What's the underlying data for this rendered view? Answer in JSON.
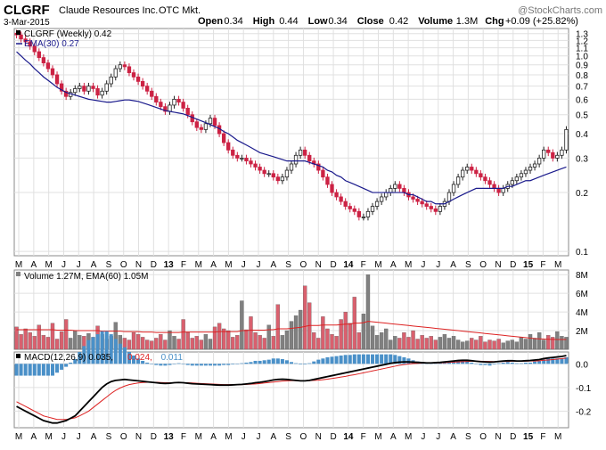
{
  "header": {
    "symbol": "CLGRF",
    "company": "Claude Resources Inc.",
    "exchange": "OTC Mkt.",
    "watermark": "@StockCharts.com",
    "date": "3-Mar-2015",
    "quote": [
      {
        "label": "Open",
        "value": "0.34"
      },
      {
        "label": "High",
        "value": "0.44"
      },
      {
        "label": "Low",
        "value": "0.34"
      },
      {
        "label": "Close",
        "value": "0.42"
      },
      {
        "label": "Volume",
        "value": "1.3M"
      },
      {
        "label": "Chg",
        "value": "+0.09 (+25.82%)"
      }
    ]
  },
  "colors": {
    "up": "#222222",
    "down": "#cc2244",
    "ema": "#1a1a8c",
    "vol_up": "#808080",
    "vol_down": "#d9606e",
    "vol_ema": "#dd2222",
    "macd": "#000000",
    "signal": "#dd2222",
    "hist": "#4a90c8",
    "grid": "#e0e0e0"
  },
  "chart_data": [
    {
      "type": "candlestick",
      "legend": [
        {
          "text": "CLGRF (Weekly) 0.42",
          "color": "#000000"
        },
        {
          "text": "EMA(30) 0.27",
          "color": "#1a1a8c"
        }
      ],
      "y_ticks": [
        "1.3",
        "1.2",
        "1.1",
        "1.0",
        "0.9",
        "0.8",
        "0.7",
        "0.6",
        "0.5",
        "0.4",
        "0.3",
        "0.2",
        "0.1"
      ],
      "ylim": [
        0.1,
        1.3
      ],
      "scale": "log",
      "close": [
        1.28,
        1.22,
        1.18,
        1.12,
        1.05,
        0.98,
        0.92,
        0.86,
        0.8,
        0.72,
        0.66,
        0.62,
        0.65,
        0.68,
        0.7,
        0.66,
        0.7,
        0.68,
        0.63,
        0.66,
        0.72,
        0.78,
        0.86,
        0.9,
        0.88,
        0.82,
        0.78,
        0.74,
        0.7,
        0.66,
        0.62,
        0.58,
        0.55,
        0.52,
        0.56,
        0.6,
        0.58,
        0.54,
        0.5,
        0.46,
        0.43,
        0.42,
        0.45,
        0.48,
        0.44,
        0.4,
        0.36,
        0.33,
        0.31,
        0.3,
        0.3,
        0.29,
        0.28,
        0.27,
        0.26,
        0.25,
        0.25,
        0.24,
        0.23,
        0.24,
        0.26,
        0.28,
        0.31,
        0.33,
        0.31,
        0.29,
        0.28,
        0.26,
        0.24,
        0.22,
        0.2,
        0.19,
        0.18,
        0.17,
        0.165,
        0.16,
        0.15,
        0.15,
        0.16,
        0.17,
        0.18,
        0.19,
        0.2,
        0.21,
        0.22,
        0.21,
        0.2,
        0.19,
        0.185,
        0.18,
        0.175,
        0.17,
        0.165,
        0.16,
        0.17,
        0.18,
        0.2,
        0.22,
        0.24,
        0.26,
        0.27,
        0.26,
        0.25,
        0.24,
        0.23,
        0.22,
        0.21,
        0.2,
        0.21,
        0.22,
        0.23,
        0.24,
        0.25,
        0.26,
        0.27,
        0.28,
        0.3,
        0.33,
        0.32,
        0.3,
        0.31,
        0.33,
        0.42
      ],
      "ema": [
        1.05,
        1.0,
        0.95,
        0.91,
        0.86,
        0.82,
        0.78,
        0.75,
        0.72,
        0.69,
        0.67,
        0.65,
        0.64,
        0.63,
        0.62,
        0.61,
        0.6,
        0.595,
        0.59,
        0.585,
        0.58,
        0.58,
        0.585,
        0.59,
        0.595,
        0.595,
        0.59,
        0.585,
        0.575,
        0.565,
        0.555,
        0.545,
        0.535,
        0.525,
        0.52,
        0.515,
        0.51,
        0.505,
        0.495,
        0.485,
        0.475,
        0.465,
        0.455,
        0.445,
        0.435,
        0.425,
        0.41,
        0.4,
        0.385,
        0.37,
        0.36,
        0.35,
        0.34,
        0.33,
        0.32,
        0.315,
        0.31,
        0.305,
        0.3,
        0.295,
        0.29,
        0.29,
        0.29,
        0.29,
        0.29,
        0.285,
        0.28,
        0.275,
        0.27,
        0.26,
        0.255,
        0.245,
        0.24,
        0.23,
        0.225,
        0.22,
        0.215,
        0.21,
        0.205,
        0.2,
        0.2,
        0.2,
        0.2,
        0.2,
        0.2,
        0.2,
        0.2,
        0.195,
        0.195,
        0.19,
        0.185,
        0.18,
        0.18,
        0.175,
        0.175,
        0.175,
        0.18,
        0.185,
        0.19,
        0.195,
        0.2,
        0.205,
        0.21,
        0.21,
        0.21,
        0.21,
        0.21,
        0.21,
        0.21,
        0.215,
        0.215,
        0.22,
        0.225,
        0.23,
        0.23,
        0.235,
        0.24,
        0.245,
        0.25,
        0.255,
        0.26,
        0.265,
        0.27
      ]
    },
    {
      "type": "bar",
      "legend": [
        {
          "text": "Volume 1.27M, EMA(60) 1.05M",
          "color": "#000000"
        }
      ],
      "y_ticks": [
        "8M",
        "6M",
        "4M",
        "2M"
      ],
      "ylim": [
        0,
        8.5
      ],
      "values": [
        2.4,
        1.6,
        2.2,
        1.8,
        1.4,
        2.6,
        1.5,
        1.3,
        2.8,
        1.1,
        1.9,
        3.2,
        1.2,
        2.0,
        1.5,
        1.4,
        1.7,
        1.3,
        2.5,
        1.6,
        1.1,
        1.4,
        2.9,
        1.5,
        1.2,
        1.0,
        1.8,
        1.6,
        1.3,
        1.0,
        0.9,
        1.2,
        1.6,
        1.0,
        2.0,
        1.4,
        1.1,
        3.2,
        1.8,
        1.2,
        1.4,
        1.0,
        1.6,
        1.1,
        2.4,
        2.8,
        2.2,
        2.0,
        1.3,
        1.5,
        5.2,
        2.1,
        3.5,
        1.8,
        1.5,
        1.2,
        2.6,
        1.4,
        4.8,
        1.5,
        2.0,
        3.0,
        3.6,
        4.2,
        6.8,
        5.0,
        1.8,
        1.2,
        3.5,
        2.2,
        1.6,
        1.4,
        3.2,
        4.0,
        2.8,
        5.6,
        1.8,
        3.8,
        8.0,
        2.5,
        1.5,
        1.8,
        2.2,
        1.0,
        1.4,
        1.2,
        1.8,
        1.3,
        2.0,
        1.1,
        1.5,
        1.2,
        1.4,
        1.0,
        1.3,
        1.6,
        1.2,
        1.4,
        1.0,
        0.8,
        0.9,
        1.2,
        1.0,
        1.4,
        0.8,
        1.0,
        0.9,
        1.1,
        0.7,
        0.9,
        1.0,
        0.8,
        1.3,
        1.1,
        1.6,
        1.2,
        1.8,
        1.0,
        1.5,
        1.3,
        1.9,
        1.4,
        1.3
      ],
      "ema": [
        2.1,
        2.1,
        2.1,
        2.1,
        2.1,
        2.1,
        2.1,
        2.1,
        2.1,
        2.05,
        2.05,
        2.05,
        2.05,
        2.0,
        2.0,
        2.0,
        2.0,
        2.0,
        2.0,
        1.95,
        1.95,
        1.95,
        1.95,
        1.95,
        1.9,
        1.9,
        1.9,
        1.9,
        1.85,
        1.85,
        1.85,
        1.8,
        1.8,
        1.8,
        1.8,
        1.8,
        1.8,
        1.85,
        1.85,
        1.85,
        1.85,
        1.85,
        1.85,
        1.85,
        1.85,
        1.9,
        1.9,
        1.9,
        1.9,
        1.9,
        2.0,
        2.0,
        2.05,
        2.05,
        2.05,
        2.05,
        2.1,
        2.1,
        2.2,
        2.2,
        2.2,
        2.25,
        2.3,
        2.35,
        2.45,
        2.55,
        2.55,
        2.55,
        2.6,
        2.6,
        2.6,
        2.6,
        2.65,
        2.7,
        2.7,
        2.8,
        2.8,
        2.85,
        3.0,
        2.95,
        2.9,
        2.85,
        2.8,
        2.75,
        2.7,
        2.65,
        2.6,
        2.55,
        2.5,
        2.45,
        2.4,
        2.35,
        2.3,
        2.25,
        2.2,
        2.15,
        2.1,
        2.05,
        2.0,
        1.95,
        1.9,
        1.85,
        1.8,
        1.75,
        1.7,
        1.65,
        1.6,
        1.55,
        1.5,
        1.45,
        1.4,
        1.35,
        1.3,
        1.25,
        1.2,
        1.15,
        1.12,
        1.1,
        1.08,
        1.06,
        1.05,
        1.05,
        1.05
      ]
    },
    {
      "type": "line",
      "legend": [
        {
          "text": "MACD(12,26,9) 0.035,",
          "color": "#000000"
        },
        {
          "text": "0.024,",
          "color": "#dd2222"
        },
        {
          "text": "0.011",
          "color": "#4a90c8"
        }
      ],
      "y_ticks": [
        "0.0",
        "-0.1",
        "-0.2"
      ],
      "ylim": [
        -0.27,
        0.05
      ],
      "series": [
        {
          "name": "MACD(12,26,9)",
          "values": [
            -0.18,
            -0.19,
            -0.2,
            -0.21,
            -0.22,
            -0.23,
            -0.24,
            -0.245,
            -0.25,
            -0.25,
            -0.245,
            -0.24,
            -0.23,
            -0.22,
            -0.2,
            -0.18,
            -0.16,
            -0.14,
            -0.12,
            -0.1,
            -0.085,
            -0.075,
            -0.07,
            -0.068,
            -0.066,
            -0.068,
            -0.07,
            -0.072,
            -0.074,
            -0.076,
            -0.078,
            -0.08,
            -0.082,
            -0.083,
            -0.082,
            -0.08,
            -0.079,
            -0.08,
            -0.082,
            -0.084,
            -0.085,
            -0.086,
            -0.087,
            -0.088,
            -0.089,
            -0.09,
            -0.09,
            -0.09,
            -0.089,
            -0.088,
            -0.087,
            -0.085,
            -0.083,
            -0.08,
            -0.078,
            -0.075,
            -0.072,
            -0.068,
            -0.066,
            -0.065,
            -0.066,
            -0.068,
            -0.07,
            -0.072,
            -0.072,
            -0.07,
            -0.066,
            -0.062,
            -0.058,
            -0.054,
            -0.05,
            -0.046,
            -0.042,
            -0.038,
            -0.034,
            -0.03,
            -0.026,
            -0.022,
            -0.018,
            -0.014,
            -0.01,
            -0.006,
            -0.002,
            0.002,
            0.005,
            0.007,
            0.008,
            0.008,
            0.007,
            0.006,
            0.005,
            0.004,
            0.004,
            0.005,
            0.006,
            0.008,
            0.01,
            0.012,
            0.014,
            0.015,
            0.015,
            0.013,
            0.011,
            0.009,
            0.008,
            0.007,
            0.008,
            0.01,
            0.012,
            0.013,
            0.013,
            0.012,
            0.012,
            0.013,
            0.014,
            0.016,
            0.018,
            0.022,
            0.025,
            0.027,
            0.029,
            0.031,
            0.035
          ]
        },
        {
          "name": "Signal",
          "values": [
            -0.16,
            -0.17,
            -0.18,
            -0.19,
            -0.2,
            -0.21,
            -0.22,
            -0.225,
            -0.23,
            -0.235,
            -0.235,
            -0.235,
            -0.232,
            -0.228,
            -0.22,
            -0.21,
            -0.2,
            -0.185,
            -0.17,
            -0.155,
            -0.14,
            -0.125,
            -0.112,
            -0.102,
            -0.094,
            -0.088,
            -0.084,
            -0.081,
            -0.079,
            -0.078,
            -0.078,
            -0.078,
            -0.079,
            -0.08,
            -0.08,
            -0.08,
            -0.08,
            -0.08,
            -0.08,
            -0.081,
            -0.082,
            -0.083,
            -0.084,
            -0.085,
            -0.086,
            -0.087,
            -0.088,
            -0.088,
            -0.088,
            -0.088,
            -0.088,
            -0.087,
            -0.086,
            -0.085,
            -0.083,
            -0.081,
            -0.079,
            -0.077,
            -0.075,
            -0.073,
            -0.072,
            -0.071,
            -0.071,
            -0.071,
            -0.071,
            -0.071,
            -0.07,
            -0.069,
            -0.067,
            -0.065,
            -0.062,
            -0.059,
            -0.056,
            -0.053,
            -0.049,
            -0.046,
            -0.042,
            -0.038,
            -0.034,
            -0.03,
            -0.026,
            -0.022,
            -0.018,
            -0.014,
            -0.01,
            -0.006,
            -0.003,
            -0.001,
            0.001,
            0.002,
            0.003,
            0.003,
            0.003,
            0.004,
            0.004,
            0.005,
            0.006,
            0.007,
            0.008,
            0.009,
            0.01,
            0.011,
            0.011,
            0.011,
            0.01,
            0.01,
            0.009,
            0.009,
            0.01,
            0.01,
            0.011,
            0.011,
            0.011,
            0.011,
            0.012,
            0.012,
            0.013,
            0.015,
            0.016,
            0.018,
            0.02,
            0.022,
            0.024
          ]
        }
      ]
    }
  ],
  "x_axis": {
    "labels": [
      "M",
      "A",
      "M",
      "J",
      "J",
      "A",
      "S",
      "O",
      "N",
      "D",
      "13",
      "F",
      "M",
      "A",
      "M",
      "J",
      "J",
      "A",
      "S",
      "O",
      "N",
      "D",
      "14",
      "F",
      "M",
      "A",
      "M",
      "J",
      "J",
      "A",
      "S",
      "O",
      "N",
      "D",
      "15",
      "F",
      "M"
    ],
    "bold": [
      "13",
      "14",
      "15"
    ]
  }
}
